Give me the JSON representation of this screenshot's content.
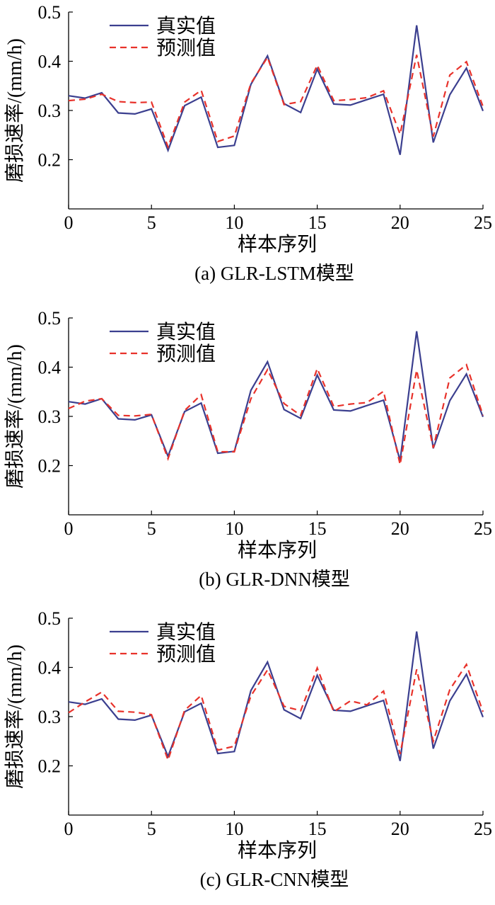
{
  "chart_data": [
    {
      "type": "line",
      "caption": "(a)  GLR-LSTM模型",
      "xlabel": "样本序列",
      "ylabel": "磨损速率/(mm/h)",
      "xlim": [
        0,
        25
      ],
      "ylim": [
        0.1,
        0.5
      ],
      "xticks": [
        0,
        5,
        10,
        15,
        20,
        25
      ],
      "yticks": [
        0.2,
        0.3,
        0.4,
        0.5
      ],
      "ytick_labels": [
        "0.2",
        "0.3",
        "0.4",
        "0.5"
      ],
      "grid": false,
      "legend_position": "top-left",
      "x": [
        0,
        1,
        2,
        3,
        4,
        5,
        6,
        7,
        8,
        9,
        10,
        11,
        12,
        13,
        14,
        15,
        16,
        17,
        18,
        19,
        20,
        21,
        22,
        23,
        24,
        25
      ],
      "series": [
        {
          "name": "真实值",
          "color": "#3b3f8f",
          "style": "solid",
          "values": [
            0.33,
            0.325,
            0.336,
            0.295,
            0.293,
            0.303,
            0.219,
            0.31,
            0.327,
            0.225,
            0.229,
            0.353,
            0.411,
            0.314,
            0.296,
            0.384,
            0.313,
            0.311,
            0.322,
            0.333,
            0.21,
            0.473,
            0.235,
            0.332,
            0.386,
            0.299
          ]
        },
        {
          "name": "预测值",
          "color": "#e8322b",
          "style": "dashed",
          "values": [
            0.32,
            0.323,
            0.333,
            0.318,
            0.316,
            0.317,
            0.226,
            0.317,
            0.341,
            0.237,
            0.248,
            0.355,
            0.408,
            0.312,
            0.318,
            0.392,
            0.32,
            0.322,
            0.326,
            0.34,
            0.252,
            0.413,
            0.247,
            0.372,
            0.399,
            0.308
          ]
        }
      ]
    },
    {
      "type": "line",
      "caption": "(b)  GLR-DNN模型",
      "xlabel": "样本序列",
      "ylabel": "磨损速率/(mm/h)",
      "xlim": [
        0,
        25
      ],
      "ylim": [
        0.1,
        0.5
      ],
      "xticks": [
        0,
        5,
        10,
        15,
        20,
        25
      ],
      "yticks": [
        0.2,
        0.3,
        0.4,
        0.5
      ],
      "ytick_labels": [
        "0.2",
        "0.3",
        "0.4",
        "0.5"
      ],
      "grid": false,
      "legend_position": "top-left",
      "x": [
        0,
        1,
        2,
        3,
        4,
        5,
        6,
        7,
        8,
        9,
        10,
        11,
        12,
        13,
        14,
        15,
        16,
        17,
        18,
        19,
        20,
        21,
        22,
        23,
        24,
        25
      ],
      "series": [
        {
          "name": "真实值",
          "color": "#3b3f8f",
          "style": "solid",
          "values": [
            0.33,
            0.325,
            0.336,
            0.295,
            0.293,
            0.303,
            0.219,
            0.31,
            0.327,
            0.225,
            0.229,
            0.353,
            0.411,
            0.314,
            0.296,
            0.384,
            0.313,
            0.311,
            0.322,
            0.333,
            0.21,
            0.473,
            0.235,
            0.332,
            0.386,
            0.299
          ]
        },
        {
          "name": "预测值",
          "color": "#e8322b",
          "style": "dashed",
          "values": [
            0.316,
            0.331,
            0.336,
            0.302,
            0.301,
            0.304,
            0.214,
            0.312,
            0.344,
            0.228,
            0.228,
            0.336,
            0.395,
            0.326,
            0.302,
            0.397,
            0.32,
            0.325,
            0.328,
            0.351,
            0.202,
            0.394,
            0.236,
            0.378,
            0.405,
            0.302
          ]
        }
      ]
    },
    {
      "type": "line",
      "caption": "(c)  GLR-CNN模型",
      "xlabel": "样本序列",
      "ylabel": "磨损速率/(mm/h)",
      "xlim": [
        0,
        25
      ],
      "ylim": [
        0.1,
        0.5
      ],
      "xticks": [
        0,
        5,
        10,
        15,
        20,
        25
      ],
      "yticks": [
        0.2,
        0.3,
        0.4,
        0.5
      ],
      "ytick_labels": [
        "0.2",
        "0.3",
        "0.4",
        "0.5"
      ],
      "grid": false,
      "legend_position": "top-left",
      "x": [
        0,
        1,
        2,
        3,
        4,
        5,
        6,
        7,
        8,
        9,
        10,
        11,
        12,
        13,
        14,
        15,
        16,
        17,
        18,
        19,
        20,
        21,
        22,
        23,
        24,
        25
      ],
      "series": [
        {
          "name": "真实值",
          "color": "#3b3f8f",
          "style": "solid",
          "values": [
            0.33,
            0.325,
            0.336,
            0.295,
            0.293,
            0.303,
            0.219,
            0.31,
            0.327,
            0.225,
            0.229,
            0.353,
            0.411,
            0.314,
            0.296,
            0.384,
            0.313,
            0.311,
            0.322,
            0.333,
            0.21,
            0.473,
            0.235,
            0.332,
            0.386,
            0.299
          ]
        },
        {
          "name": "预测值",
          "color": "#e8322b",
          "style": "dashed",
          "values": [
            0.308,
            0.33,
            0.35,
            0.311,
            0.309,
            0.304,
            0.212,
            0.313,
            0.343,
            0.232,
            0.24,
            0.342,
            0.395,
            0.321,
            0.312,
            0.399,
            0.31,
            0.332,
            0.324,
            0.352,
            0.224,
            0.396,
            0.25,
            0.355,
            0.406,
            0.31
          ]
        }
      ]
    }
  ]
}
